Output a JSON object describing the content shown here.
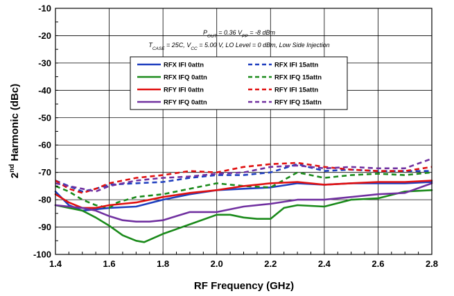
{
  "chart_data": {
    "type": "line",
    "xlabel": "RF Frequency (GHz)",
    "ylabel_main": "2",
    "ylabel_sup": "nd",
    "ylabel_rest": " Harmonic (dBc)",
    "xlim": [
      1.4,
      2.8
    ],
    "ylim": [
      -100,
      -10
    ],
    "xticks": [
      1.4,
      1.6,
      1.8,
      2.0,
      2.2,
      2.4,
      2.6,
      2.8
    ],
    "xtick_labels": [
      "1.4",
      "1.6",
      "1.8",
      "2.0",
      "2.2",
      "2.4",
      "2.6",
      "2.8"
    ],
    "yticks": [
      -100,
      -90,
      -80,
      -70,
      -60,
      -50,
      -40,
      -30,
      -20,
      -10
    ],
    "ytick_labels": [
      "-100",
      "-90",
      "-80",
      "-70",
      "-60",
      "-50",
      "-40",
      "-30",
      "-20",
      "-10"
    ],
    "grid": true,
    "legend_position": "top-center",
    "conditions": [
      [
        {
          "t": "P",
          "s": "n"
        },
        {
          "t": "OUT",
          "s": "sub"
        },
        {
          "t": " = 0.36 V",
          "s": "n"
        },
        {
          "t": "PP",
          "s": "sub"
        },
        {
          "t": " = -8 dBm",
          "s": "n"
        }
      ],
      [
        {
          "t": "T",
          "s": "n"
        },
        {
          "t": "CASE",
          "s": "sub"
        },
        {
          "t": " = 25C,  V",
          "s": "n"
        },
        {
          "t": "CC",
          "s": "sub"
        },
        {
          "t": " = 5.00 V,  LO Level = 0 dBm,  Low Side Injection",
          "s": "n"
        }
      ]
    ],
    "series": [
      {
        "name": "RFX IFI 0attn",
        "color": "#1f3fbf",
        "dash": "solid",
        "x": [
          1.4,
          1.45,
          1.5,
          1.55,
          1.6,
          1.7,
          1.8,
          1.9,
          2.0,
          2.1,
          2.2,
          2.3,
          2.4,
          2.5,
          2.6,
          2.7,
          2.8
        ],
        "y": [
          -77,
          -82,
          -84,
          -83.5,
          -83,
          -82.5,
          -80,
          -78,
          -76.5,
          -76,
          -75.5,
          -74,
          -74.5,
          -74,
          -74,
          -74,
          -73.5
        ]
      },
      {
        "name": "RFX IFI 15attn",
        "color": "#1f3fbf",
        "dash": "dash",
        "x": [
          1.4,
          1.45,
          1.5,
          1.55,
          1.6,
          1.7,
          1.8,
          1.9,
          2.0,
          2.1,
          2.2,
          2.3,
          2.4,
          2.5,
          2.6,
          2.7,
          2.8
        ],
        "y": [
          -73,
          -75,
          -77,
          -76,
          -74.5,
          -74,
          -73.5,
          -72,
          -71,
          -71,
          -70,
          -67,
          -69.5,
          -69,
          -69.5,
          -69.5,
          -69.5
        ]
      },
      {
        "name": "RFX IFQ 0attn",
        "color": "#1a8a1a",
        "dash": "solid",
        "x": [
          1.4,
          1.5,
          1.55,
          1.6,
          1.65,
          1.7,
          1.73,
          1.8,
          1.9,
          2.0,
          2.05,
          2.1,
          2.15,
          2.2,
          2.25,
          2.3,
          2.4,
          2.5,
          2.6,
          2.7,
          2.8
        ],
        "y": [
          -82,
          -84,
          -86.5,
          -89.5,
          -93,
          -95,
          -95.5,
          -92.5,
          -89,
          -85.5,
          -85.5,
          -86.5,
          -87,
          -87,
          -83,
          -82,
          -82.5,
          -80,
          -79.5,
          -77,
          -76.5
        ]
      },
      {
        "name": "RFX IFQ 15attn",
        "color": "#1a8a1a",
        "dash": "dash",
        "x": [
          1.4,
          1.45,
          1.5,
          1.55,
          1.6,
          1.63,
          1.7,
          1.8,
          1.9,
          2.0,
          2.1,
          2.2,
          2.3,
          2.4,
          2.5,
          2.6,
          2.7,
          2.8
        ],
        "y": [
          -75,
          -77,
          -80,
          -82,
          -83,
          -81,
          -79,
          -78,
          -76,
          -74,
          -75,
          -75.5,
          -70,
          -72,
          -71,
          -70.5,
          -71,
          -70
        ]
      },
      {
        "name": "RFY IFI 0attn",
        "color": "#e01010",
        "dash": "solid",
        "x": [
          1.4,
          1.45,
          1.5,
          1.55,
          1.6,
          1.7,
          1.8,
          1.9,
          2.0,
          2.1,
          2.2,
          2.3,
          2.4,
          2.5,
          2.6,
          2.7,
          2.8
        ],
        "y": [
          -78,
          -81,
          -83,
          -83,
          -82,
          -81,
          -79,
          -77.5,
          -76.5,
          -75,
          -74,
          -73.5,
          -74.5,
          -74,
          -73.5,
          -73.5,
          -73
        ]
      },
      {
        "name": "RFY IFI 15attn",
        "color": "#e01010",
        "dash": "dash",
        "x": [
          1.4,
          1.45,
          1.5,
          1.55,
          1.6,
          1.7,
          1.8,
          1.9,
          2.0,
          2.1,
          2.2,
          2.3,
          2.4,
          2.5,
          2.6,
          2.7,
          2.8
        ],
        "y": [
          -73,
          -76,
          -77.5,
          -76,
          -74,
          -72,
          -71,
          -69.5,
          -70,
          -68,
          -67,
          -66.5,
          -68,
          -69,
          -69.5,
          -69.5,
          -68
        ]
      },
      {
        "name": "RFY IFQ 0attn",
        "color": "#7030a0",
        "dash": "solid",
        "x": [
          1.4,
          1.45,
          1.5,
          1.55,
          1.6,
          1.65,
          1.7,
          1.75,
          1.8,
          1.85,
          1.9,
          2.0,
          2.1,
          2.2,
          2.3,
          2.4,
          2.5,
          2.6,
          2.7,
          2.8
        ],
        "y": [
          -82,
          -82.5,
          -83,
          -84,
          -86,
          -87.5,
          -88,
          -88,
          -87.5,
          -86,
          -84.5,
          -84.5,
          -82.5,
          -81.5,
          -80,
          -80,
          -79,
          -78,
          -77.5,
          -74
        ]
      },
      {
        "name": "RFY IFQ 15attn",
        "color": "#7030a0",
        "dash": "dash",
        "x": [
          1.4,
          1.45,
          1.5,
          1.55,
          1.6,
          1.7,
          1.8,
          1.9,
          2.0,
          2.1,
          2.2,
          2.3,
          2.4,
          2.5,
          2.6,
          2.7,
          2.8
        ],
        "y": [
          -74,
          -75,
          -76,
          -77,
          -75,
          -73,
          -72,
          -71.5,
          -70.5,
          -70,
          -68,
          -67.5,
          -68.5,
          -68,
          -68.5,
          -68.5,
          -65
        ]
      }
    ]
  }
}
